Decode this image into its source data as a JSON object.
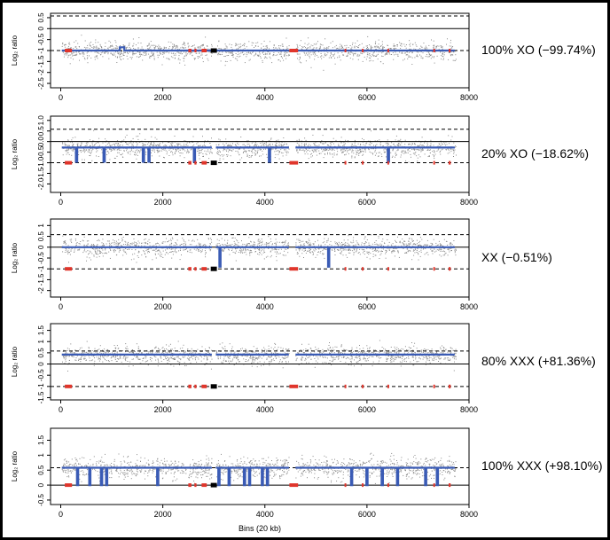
{
  "figure": {
    "xlabel": "Bins (20 kb)",
    "ylabel": "Log₂ ratio",
    "colors": {
      "points": "#8a8a8a",
      "segments": "#3a5bb5",
      "excluded": "#e0352b",
      "gap": "#000000",
      "background": "#ffffff"
    }
  },
  "chart_data": [
    {
      "type": "scatter",
      "label": "100% XO (−99.74%)",
      "xlim": [
        -200,
        8000
      ],
      "ylim": [
        -2.7,
        0.7
      ],
      "yticks": [
        "0.5",
        "0",
        "-0.5",
        "-1",
        "-1.5",
        "-2",
        "-2.5"
      ],
      "ytick_values": [
        0.5,
        0,
        -0.5,
        -1,
        -1.5,
        -2,
        -2.5
      ],
      "xticks": [
        "0",
        "2000",
        "4000",
        "6000",
        "8000"
      ],
      "xtick_values": [
        0,
        2000,
        4000,
        6000,
        8000
      ],
      "reference_lines": {
        "solid": 0,
        "dashed": [
          0.58,
          -1.0
        ]
      },
      "baseline": -1.0,
      "noise": 0.35,
      "dips": [
        {
          "x": 1200,
          "w": 90,
          "y": -0.85
        }
      ]
    },
    {
      "type": "scatter",
      "label": "20% XO (−18.62%)",
      "xlim": [
        -200,
        8000
      ],
      "ylim": [
        -2.4,
        1.2
      ],
      "yticks": [
        "1.0",
        "0.5",
        "0.0",
        "-0.5",
        "-1.0",
        "-1.5",
        "-2.0"
      ],
      "ytick_values": [
        1.0,
        0.5,
        0,
        -0.5,
        -1.0,
        -1.5,
        -2.0
      ],
      "xticks": [
        "0",
        "2000",
        "4000",
        "6000",
        "8000"
      ],
      "xtick_values": [
        0,
        2000,
        4000,
        6000,
        8000
      ],
      "reference_lines": {
        "solid": 0,
        "dashed": [
          0.58,
          -1.0
        ]
      },
      "baseline": -0.28,
      "noise": 0.35,
      "dips": [
        {
          "x": 310,
          "w": 25,
          "y": -0.95
        },
        {
          "x": 850,
          "w": 25,
          "y": -0.95
        },
        {
          "x": 1620,
          "w": 25,
          "y": -0.95
        },
        {
          "x": 1730,
          "w": 25,
          "y": -0.95
        },
        {
          "x": 2620,
          "w": 25,
          "y": -0.95
        },
        {
          "x": 4090,
          "w": 25,
          "y": -0.95
        },
        {
          "x": 6420,
          "w": 25,
          "y": -0.95
        }
      ]
    },
    {
      "type": "scatter",
      "label": "XX (−0.51%)",
      "xlim": [
        -200,
        8000
      ],
      "ylim": [
        -2.3,
        1.3
      ],
      "yticks": [
        "1",
        "0.5",
        "0",
        "-0.5",
        "-1",
        "-1.5",
        "-2"
      ],
      "ytick_values": [
        1,
        0.5,
        0,
        -0.5,
        -1,
        -1.5,
        -2
      ],
      "xticks": [
        "0",
        "2000",
        "4000",
        "6000",
        "8000"
      ],
      "xtick_values": [
        0,
        2000,
        4000,
        6000,
        8000
      ],
      "reference_lines": {
        "solid": 0,
        "dashed": [
          0.58,
          -1.0
        ]
      },
      "baseline": 0.0,
      "noise": 0.33,
      "dips": [
        {
          "x": 3120,
          "w": 25,
          "y": -0.9
        },
        {
          "x": 5250,
          "w": 25,
          "y": -0.9
        }
      ]
    },
    {
      "type": "scatter",
      "label": "80% XXX (+81.36%)",
      "xlim": [
        -200,
        8000
      ],
      "ylim": [
        -1.6,
        1.8
      ],
      "yticks": [
        "1.5",
        "1",
        "0.5",
        "0",
        "-0.5",
        "-1",
        "-1.5"
      ],
      "ytick_values": [
        1.5,
        1,
        0.5,
        0,
        -0.5,
        -1,
        -1.5
      ],
      "xticks": [
        "0",
        "2000",
        "4000",
        "6000",
        "8000"
      ],
      "xtick_values": [
        0,
        2000,
        4000,
        6000,
        8000
      ],
      "reference_lines": {
        "solid": 0,
        "dashed": [
          0.58,
          -1.0
        ]
      },
      "baseline": 0.42,
      "noise": 0.33,
      "dips": []
    },
    {
      "type": "scatter",
      "label": "100% XXX (+98.10%)",
      "xlim": [
        -200,
        8000
      ],
      "ylim": [
        -0.65,
        1.9
      ],
      "yticks": [
        "1.5",
        "1",
        "0.5",
        "0",
        "-0.5"
      ],
      "ytick_values": [
        1.5,
        1,
        0.5,
        0,
        -0.5
      ],
      "xticks": [
        "0",
        "2000",
        "4000",
        "6000",
        "8000"
      ],
      "xtick_values": [
        0,
        2000,
        4000,
        6000,
        8000
      ],
      "reference_lines": {
        "solid": 0,
        "dashed": [
          0.58
        ]
      },
      "baseline": 0.58,
      "noise": 0.28,
      "dips": [
        {
          "x": 330,
          "w": 25,
          "y": 0.0
        },
        {
          "x": 570,
          "w": 25,
          "y": 0.0
        },
        {
          "x": 800,
          "w": 25,
          "y": 0.0
        },
        {
          "x": 900,
          "w": 25,
          "y": 0.0
        },
        {
          "x": 1900,
          "w": 25,
          "y": 0.0
        },
        {
          "x": 3100,
          "w": 25,
          "y": 0.0
        },
        {
          "x": 3300,
          "w": 25,
          "y": 0.0
        },
        {
          "x": 3600,
          "w": 25,
          "y": 0.0
        },
        {
          "x": 3700,
          "w": 25,
          "y": 0.0
        },
        {
          "x": 3950,
          "w": 25,
          "y": 0.0
        },
        {
          "x": 4050,
          "w": 25,
          "y": 0.0
        },
        {
          "x": 5700,
          "w": 25,
          "y": 0.0
        },
        {
          "x": 6000,
          "w": 25,
          "y": 0.0
        },
        {
          "x": 6300,
          "w": 25,
          "y": 0.0
        },
        {
          "x": 6600,
          "w": 25,
          "y": 0.0
        },
        {
          "x": 7150,
          "w": 25,
          "y": 0.0
        },
        {
          "x": 7380,
          "w": 25,
          "y": 0.0
        }
      ]
    }
  ],
  "shared": {
    "gaps": [
      [
        2960,
        3040
      ],
      [
        4470,
        4600
      ]
    ],
    "black_marker": [
      2940,
      3060
    ],
    "excluded_regions": [
      [
        80,
        220
      ],
      [
        2500,
        2560
      ],
      [
        2620,
        2660
      ],
      [
        2760,
        2860
      ],
      [
        4480,
        4650
      ],
      [
        5560,
        5580
      ],
      [
        5900,
        5920
      ],
      [
        6400,
        6420
      ],
      [
        7300,
        7320
      ],
      [
        7600,
        7640
      ]
    ],
    "data_xmax": 7720
  }
}
